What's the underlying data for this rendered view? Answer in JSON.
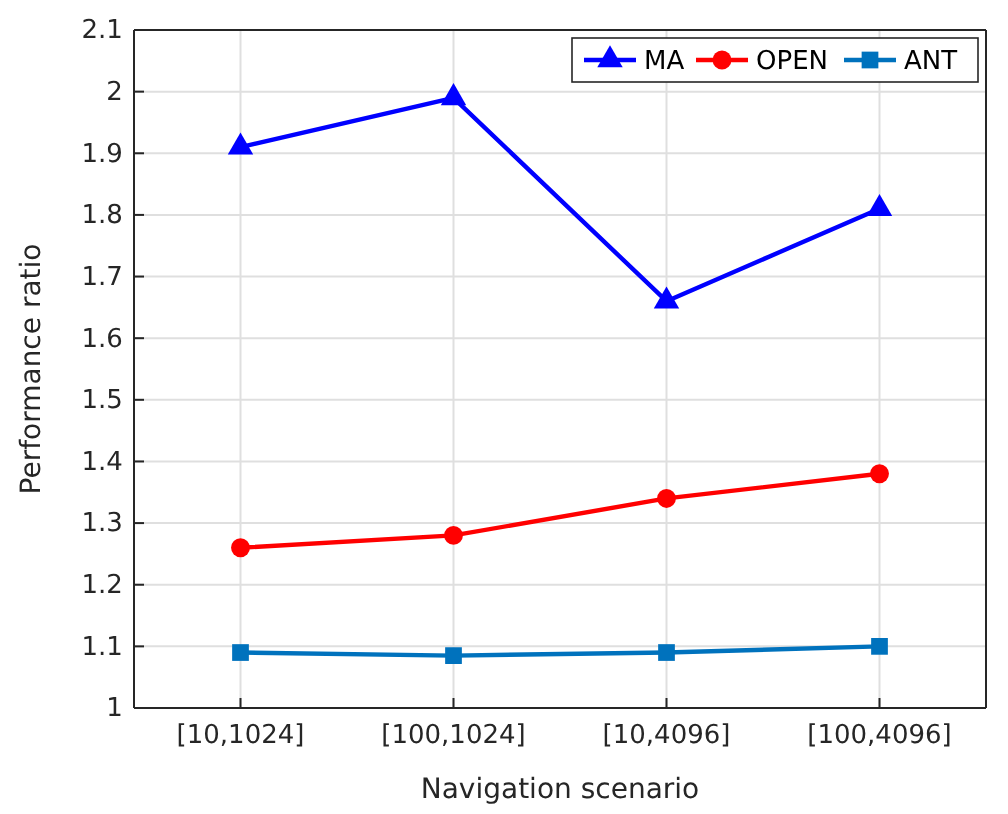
{
  "chart_data": {
    "type": "line",
    "xlabel": "Navigation scenario",
    "ylabel": "Performance ratio",
    "categories": [
      "[10,1024]",
      "[100,1024]",
      "[10,4096]",
      "[100,4096]"
    ],
    "series": [
      {
        "name": "MA",
        "color": "#0000ff",
        "marker": "triangle",
        "values": [
          1.91,
          1.99,
          1.66,
          1.81
        ]
      },
      {
        "name": "OPEN",
        "color": "#ff0000",
        "marker": "circle",
        "values": [
          1.26,
          1.28,
          1.34,
          1.38
        ]
      },
      {
        "name": "ANT",
        "color": "#0072bd",
        "marker": "square",
        "values": [
          1.09,
          1.085,
          1.09,
          1.1
        ]
      }
    ],
    "ylim": [
      1,
      2.1
    ],
    "yticks": [
      1,
      1.1,
      1.2,
      1.3,
      1.4,
      1.5,
      1.6,
      1.7,
      1.8,
      1.9,
      2,
      2.1
    ],
    "grid": true,
    "legend": "top right",
    "line_style": "solid"
  }
}
